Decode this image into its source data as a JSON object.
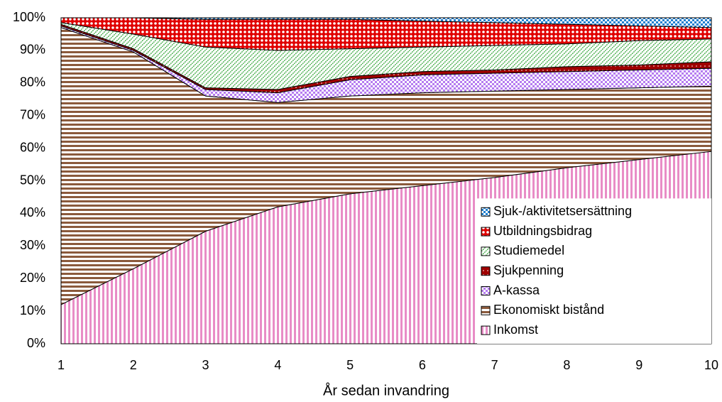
{
  "chart_data": {
    "type": "area",
    "stacked": true,
    "x_label": "År sedan invandring",
    "x": [
      1,
      2,
      3,
      4,
      5,
      6,
      7,
      8,
      9,
      10
    ],
    "xlim": [
      1,
      10
    ],
    "xticks": [
      1,
      2,
      3,
      4,
      5,
      6,
      7,
      8,
      9,
      10
    ],
    "ylim": [
      0,
      100
    ],
    "yticks": [
      {
        "value": 0,
        "label": "0%"
      },
      {
        "value": 10,
        "label": "10%"
      },
      {
        "value": 20,
        "label": "20%"
      },
      {
        "value": 30,
        "label": "30%"
      },
      {
        "value": 40,
        "label": "40%"
      },
      {
        "value": 50,
        "label": "50%"
      },
      {
        "value": 60,
        "label": "60%"
      },
      {
        "value": 70,
        "label": "70%"
      },
      {
        "value": 80,
        "label": "80%"
      },
      {
        "value": 90,
        "label": "90%"
      },
      {
        "value": 100,
        "label": "100%"
      }
    ],
    "legend_position": "lower right",
    "series": [
      {
        "name": "Inkomst",
        "color": "#e88cc6",
        "pattern": "vertical",
        "values": [
          12,
          23,
          34.5,
          42,
          46,
          48.5,
          51,
          54,
          56.5,
          59
        ]
      },
      {
        "name": "Ekonomiskt bistånd",
        "color": "#8b5a3c",
        "pattern": "horizontal",
        "values": [
          85,
          66.5,
          41.5,
          32,
          30,
          28.5,
          26.5,
          24,
          22,
          20
        ]
      },
      {
        "name": "A-kassa",
        "color": "#b57cf0",
        "pattern": "checker",
        "values": [
          0.5,
          0.5,
          2,
          3,
          5,
          5.5,
          5.5,
          5.5,
          5.5,
          5.5
        ]
      },
      {
        "name": "Sjukpenning",
        "color": "#a00000",
        "pattern": "dots",
        "values": [
          0.5,
          0.5,
          0.5,
          1,
          1,
          1,
          1,
          1.5,
          1.5,
          2
        ]
      },
      {
        "name": "Studiemedel",
        "color": "#4caf50",
        "pattern": "diagonal",
        "values": [
          0.5,
          4.5,
          12.5,
          12,
          8.5,
          7.5,
          7.5,
          7,
          7.5,
          7
        ]
      },
      {
        "name": "Utbildningsbidrag",
        "color": "#e00000",
        "pattern": "circles",
        "values": [
          1.5,
          5,
          8.5,
          9.5,
          9,
          8,
          7,
          6,
          4.5,
          3.5
        ]
      },
      {
        "name": "Sjuk-/aktivitetsersättning",
        "color": "#1f7fd0",
        "pattern": "checker",
        "values": [
          0,
          0,
          0.5,
          0.5,
          0.5,
          1,
          1.5,
          2,
          2.5,
          3
        ]
      }
    ]
  }
}
